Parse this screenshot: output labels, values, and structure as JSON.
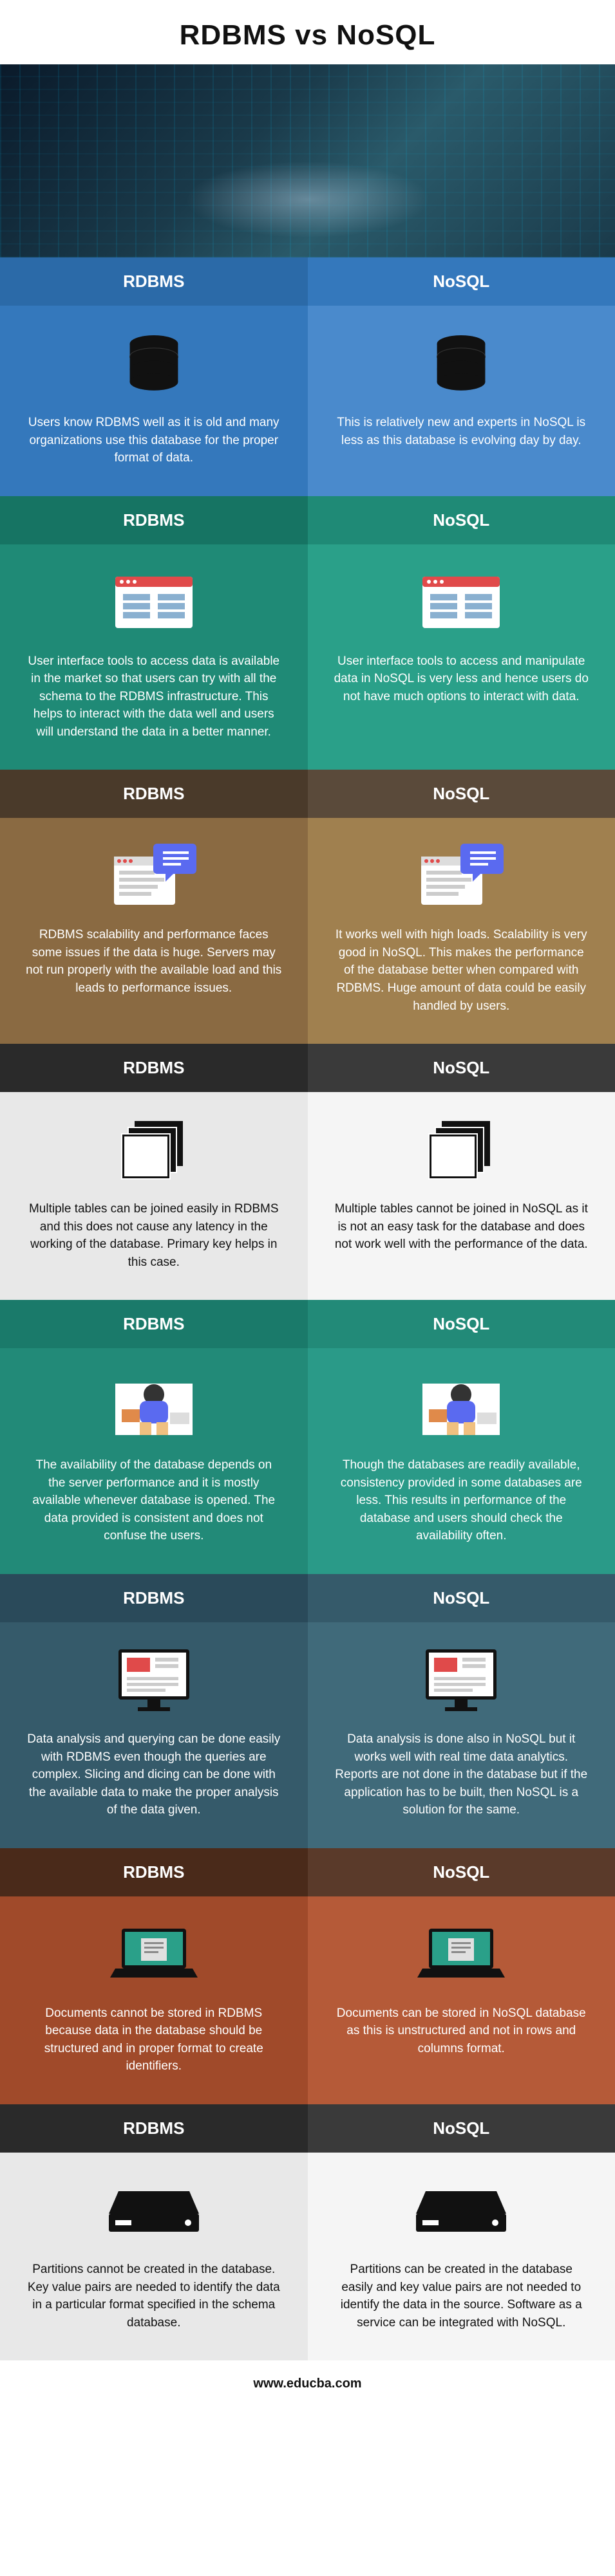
{
  "page_title": "RDBMS vs NoSQL",
  "footer_url": "www.educba.com",
  "col_headers": {
    "left": "RDBMS",
    "right": "NoSQL"
  },
  "sections": [
    {
      "hdr_colors": [
        "#2b6aa8",
        "#3478bc"
      ],
      "body_colors": [
        "#3478bc",
        "#4a8acc"
      ],
      "text_dark": false,
      "icon": "database",
      "left_text": "Users know RDBMS well as it is old and many organizations use this database for the proper format of data.",
      "right_text": "This is relatively new and experts in NoSQL is less as this database is evolving day by day."
    },
    {
      "hdr_colors": [
        "#167463",
        "#1f8a76"
      ],
      "body_colors": [
        "#1f8a76",
        "#2aa089"
      ],
      "text_dark": false,
      "icon": "window-grid",
      "left_text": "User interface tools to access data is available in the market so that users can try with all the schema to the RDBMS infrastructure. This helps to interact with the data well and users will understand the data in a better manner.",
      "right_text": "User interface tools to access and manipulate data in NoSQL is very less and hence users do not have much options to interact with data."
    },
    {
      "hdr_colors": [
        "#4a3a2a",
        "#5a4a3a"
      ],
      "body_colors": [
        "#8a6a42",
        "#a0804f"
      ],
      "text_dark": false,
      "icon": "browser-chat",
      "left_text": "RDBMS scalability and performance faces some issues if the data is huge. Servers may not run properly with the available load and this leads to performance issues.",
      "right_text": "It works well with high loads. Scalability is very good in NoSQL. This makes the performance of the database better when compared with RDBMS. Huge amount of data could be easily handled by users."
    },
    {
      "hdr_colors": [
        "#2a2a2a",
        "#3a3a3a"
      ],
      "body_colors": [
        "#e8e8e8",
        "#f5f5f5"
      ],
      "text_dark": true,
      "icon": "tables-stack",
      "left_text": "Multiple tables can be joined easily in RDBMS and this does not cause any latency in the working of the database. Primary key helps in this case.",
      "right_text": "Multiple tables cannot be joined in NoSQL as it is not an easy task for the database and does not work well with the performance of the data."
    },
    {
      "hdr_colors": [
        "#1a7a6a",
        "#228a78"
      ],
      "body_colors": [
        "#228a78",
        "#2a9a88"
      ],
      "text_dark": false,
      "icon": "desk-person",
      "left_text": "The availability of the database depends on the server performance and it is mostly available whenever database is opened. The data provided is consistent and does not confuse the users.",
      "right_text": "Though the databases are readily available, consistency provided in some databases are less. This results in performance of the database and users should check the availability often."
    },
    {
      "hdr_colors": [
        "#2a4a5a",
        "#355a6a"
      ],
      "body_colors": [
        "#355a6a",
        "#406a7a"
      ],
      "text_dark": false,
      "icon": "monitor-blocks",
      "left_text": "Data analysis and querying can be done easily with RDBMS even though the queries are complex. Slicing and dicing can be done with the available data to make the proper analysis of the data given.",
      "right_text": "Data analysis is done also in NoSQL but it works well with real time data analytics. Reports are not done in the database but if the application has to be built, then NoSQL is a solution for the same."
    },
    {
      "hdr_colors": [
        "#4a2a1a",
        "#5a3a2a"
      ],
      "body_colors": [
        "#a04a2a",
        "#b55a38"
      ],
      "text_dark": false,
      "icon": "laptop-doc",
      "left_text": "Documents cannot be stored in RDBMS because data in the database should be structured and in proper format to create identifiers.",
      "right_text": "Documents can be stored in NoSQL database as this is unstructured and not in rows and columns format."
    },
    {
      "hdr_colors": [
        "#2a2a2a",
        "#3a3a3a"
      ],
      "body_colors": [
        "#e8e8e8",
        "#f5f5f5"
      ],
      "text_dark": true,
      "icon": "hard-drive",
      "left_text": "Partitions cannot be created in the database. Key value pairs are needed to identify the data in a particular format specified in the schema database.",
      "right_text": "Partitions can be created in the database easily and key value pairs are not needed to identify the data in the source. Software as a service can be integrated with NoSQL."
    }
  ],
  "icon_accent": {
    "window-grid": {
      "bar": "#e04a4a",
      "content": "#8ab0d0"
    },
    "browser-chat": {
      "bubble": "#5a6af0",
      "dots": "#e04a4a"
    },
    "desk-person": {
      "shirt": "#5a6af0",
      "paper": "#e08a4a"
    },
    "monitor-blocks": {
      "block": "#e04a4a"
    },
    "laptop-doc": {
      "screen": "#2aa089",
      "doc": "#e0e0e0"
    }
  }
}
